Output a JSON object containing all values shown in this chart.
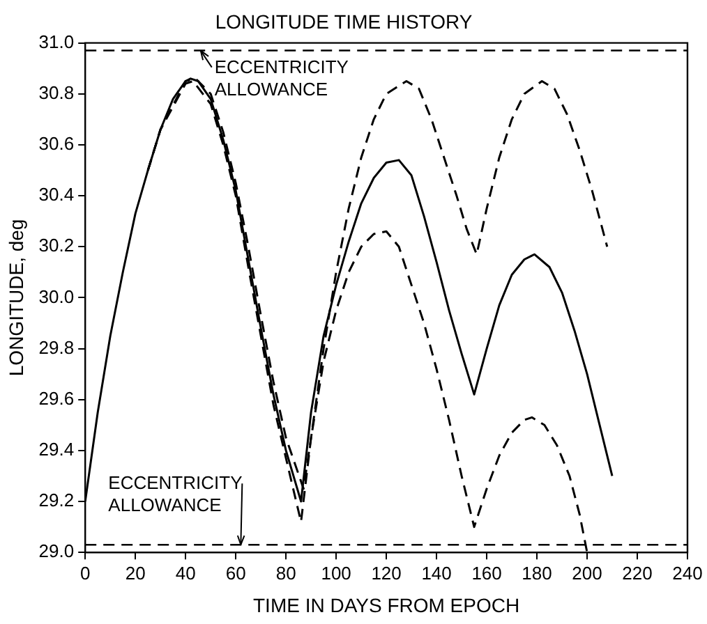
{
  "chart_data": {
    "type": "line",
    "title": "LONGITUDE TIME HISTORY",
    "xlabel": "TIME IN DAYS FROM EPOCH",
    "ylabel": "LONGITUDE, deg",
    "xlim": [
      0,
      240
    ],
    "xticks": [
      0,
      20,
      40,
      60,
      80,
      100,
      120,
      140,
      160,
      180,
      200,
      220,
      240
    ],
    "ylim": [
      29.0,
      31.0
    ],
    "yticks": [
      {
        "value": 29.0,
        "label": "29.0"
      },
      {
        "value": 29.2,
        "label": "29.2"
      },
      {
        "value": 29.4,
        "label": "29.4"
      },
      {
        "value": 29.6,
        "label": "29.6"
      },
      {
        "value": 29.8,
        "label": "29.8"
      },
      {
        "value": 30.0,
        "label": "30.0"
      },
      {
        "value": 30.2,
        "label": "30.2"
      },
      {
        "value": 30.4,
        "label": "30.4"
      },
      {
        "value": 30.6,
        "label": "30.6"
      },
      {
        "value": 30.8,
        "label": "30.8"
      },
      {
        "value": 31.0,
        "label": "31.0"
      }
    ],
    "grid": false,
    "legend": false,
    "marker": "none",
    "series": [
      {
        "color": "#000000",
        "line_style": "solid",
        "x": [
          0,
          5,
          10,
          15,
          20,
          25,
          30,
          35,
          40,
          42,
          45,
          50,
          55,
          60,
          65,
          70,
          75,
          80,
          86,
          90,
          95,
          100,
          105,
          110,
          115,
          120,
          125,
          130,
          135,
          140,
          145,
          150,
          155,
          160,
          165,
          170,
          175,
          179,
          185,
          190,
          195,
          200,
          205,
          210
        ],
        "values": [
          29.2,
          29.55,
          29.85,
          30.1,
          30.33,
          30.5,
          30.66,
          30.78,
          30.85,
          30.86,
          30.85,
          30.78,
          30.62,
          30.42,
          30.15,
          29.88,
          29.62,
          29.4,
          29.2,
          29.55,
          29.85,
          30.05,
          30.22,
          30.37,
          30.47,
          30.53,
          30.54,
          30.48,
          30.32,
          30.14,
          29.95,
          29.78,
          29.62,
          29.8,
          29.97,
          30.09,
          30.15,
          30.17,
          30.12,
          30.02,
          29.87,
          29.7,
          29.5,
          29.3
        ]
      },
      {
        "color": "#000000",
        "line_style": "dashed",
        "x": [
          25,
          30,
          40,
          44,
          50,
          55,
          60,
          65,
          70,
          75,
          80,
          87,
          90,
          95,
          100,
          105,
          110,
          115,
          120,
          128,
          133,
          138,
          143,
          148,
          152,
          156,
          160,
          165,
          170,
          175,
          182,
          187,
          192,
          197,
          202,
          208
        ],
        "values": [
          30.5,
          30.66,
          30.85,
          30.86,
          30.8,
          30.65,
          30.45,
          30.2,
          29.93,
          29.67,
          29.45,
          29.25,
          29.45,
          29.8,
          30.1,
          30.35,
          30.55,
          30.7,
          30.8,
          30.85,
          30.82,
          30.7,
          30.55,
          30.4,
          30.27,
          30.17,
          30.35,
          30.55,
          30.7,
          30.8,
          30.85,
          30.82,
          30.72,
          30.58,
          30.42,
          30.2
        ]
      },
      {
        "color": "#000000",
        "line_style": "dashed",
        "x": [
          25,
          30,
          40,
          43,
          50,
          55,
          60,
          65,
          70,
          75,
          80,
          86,
          90,
          95,
          100,
          105,
          110,
          115,
          120,
          125,
          130,
          135,
          140,
          145,
          150,
          155,
          160,
          165,
          170,
          175,
          178,
          183,
          188,
          193,
          197,
          200
        ],
        "values": [
          30.5,
          30.66,
          30.84,
          30.85,
          30.76,
          30.6,
          30.4,
          30.12,
          29.85,
          29.58,
          29.37,
          29.12,
          29.45,
          29.75,
          29.95,
          30.1,
          30.2,
          30.25,
          30.26,
          30.2,
          30.05,
          29.9,
          29.72,
          29.52,
          29.3,
          29.1,
          29.25,
          29.38,
          29.47,
          29.52,
          29.53,
          29.5,
          29.42,
          29.3,
          29.15,
          29.0
        ]
      }
    ],
    "ref_lines": [
      {
        "axis": "y",
        "value": 30.97,
        "line_style": "dashed",
        "color": "#000000"
      },
      {
        "axis": "y",
        "value": 29.03,
        "line_style": "dashed",
        "color": "#000000"
      }
    ],
    "annotations": [
      {
        "text": "ECCENTRICITY\nALLOWANCE",
        "x": 46,
        "y": 30.97
      },
      {
        "text": "ECCENTRICITY\nALLOWANCE",
        "x": 62,
        "y": 29.03
      }
    ]
  }
}
